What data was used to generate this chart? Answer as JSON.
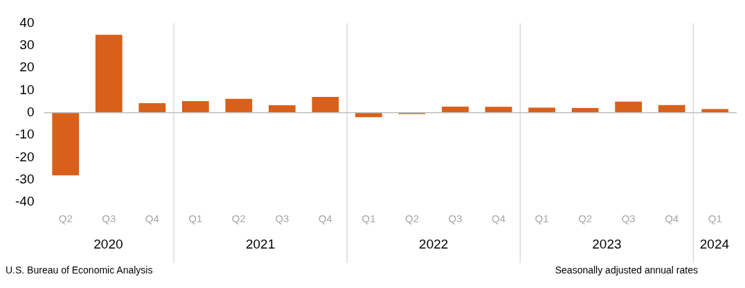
{
  "chart_data": {
    "type": "bar",
    "categories": [
      "Q2",
      "Q3",
      "Q4",
      "Q1",
      "Q2",
      "Q3",
      "Q4",
      "Q1",
      "Q2",
      "Q3",
      "Q4",
      "Q1",
      "Q2",
      "Q3",
      "Q4",
      "Q1"
    ],
    "values": [
      -28.0,
      34.8,
      4.2,
      5.2,
      6.2,
      3.3,
      7.0,
      -2.0,
      -0.6,
      2.7,
      2.6,
      2.2,
      2.1,
      4.9,
      3.4,
      1.6
    ],
    "color": "#d9601a",
    "ylim": [
      -40,
      40
    ],
    "yticks": [
      -40,
      -30,
      -20,
      -10,
      0,
      10,
      20,
      30,
      40
    ],
    "x2lim": [
      "2020-04-01",
      "2024-04-01"
    ],
    "x2ticks": [
      {
        "value": "2020-08-15",
        "label": "2020"
      },
      {
        "value": "2021-01-01",
        "label": null
      },
      {
        "value": "2021-07-01",
        "label": "2021"
      },
      {
        "value": "2022-01-01",
        "label": null
      },
      {
        "value": "2022-07-01",
        "label": "2022"
      },
      {
        "value": "2023-01-01",
        "label": null
      },
      {
        "value": "2023-07-01",
        "label": "2023"
      },
      {
        "value": "2024-01-01",
        "label": null
      },
      {
        "value": "2024-02-15",
        "label": "2024"
      }
    ],
    "grid": "x",
    "ref_lines": [
      {
        "axis": "y",
        "value": 0,
        "color": "#bfbfbf"
      }
    ],
    "legend": false,
    "annotations": [
      "U.S. Bureau of Economic Analysis",
      "Seasonally adjusted annual rates"
    ]
  }
}
